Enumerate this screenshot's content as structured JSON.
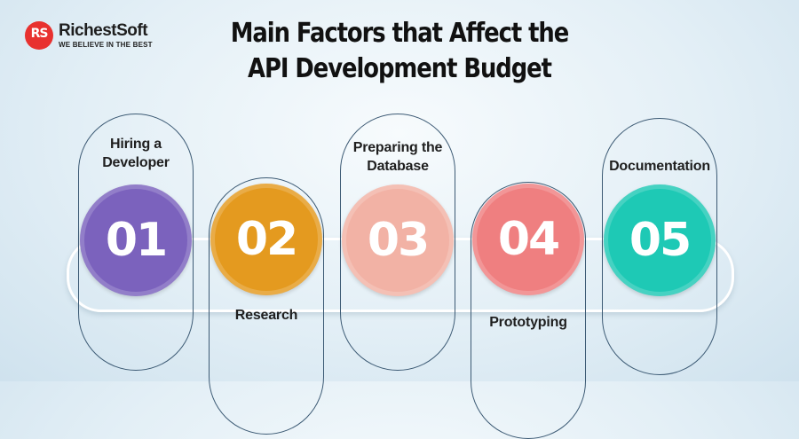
{
  "brand": {
    "mark": "RS",
    "name": "RichestSoft",
    "tagline": "WE BELIEVE IN THE BEST"
  },
  "title": {
    "line1": "Main Factors that Affect the",
    "line2": "API Development Budget"
  },
  "colors": {
    "c1": "#7b62bd",
    "c2": "#e49a1f",
    "c3": "#f2b2a5",
    "c4": "#ef7f80",
    "c5": "#1ec9b5",
    "brand": "#e8312f"
  },
  "factors": [
    {
      "number": "01",
      "label_line1": "Hiring a",
      "label_line2": "Developer"
    },
    {
      "number": "02",
      "label_line1": "Research",
      "label_line2": ""
    },
    {
      "number": "03",
      "label_line1": "Preparing the",
      "label_line2": "Database"
    },
    {
      "number": "04",
      "label_line1": "Prototyping",
      "label_line2": ""
    },
    {
      "number": "05",
      "label_line1": "Documentation",
      "label_line2": ""
    }
  ]
}
